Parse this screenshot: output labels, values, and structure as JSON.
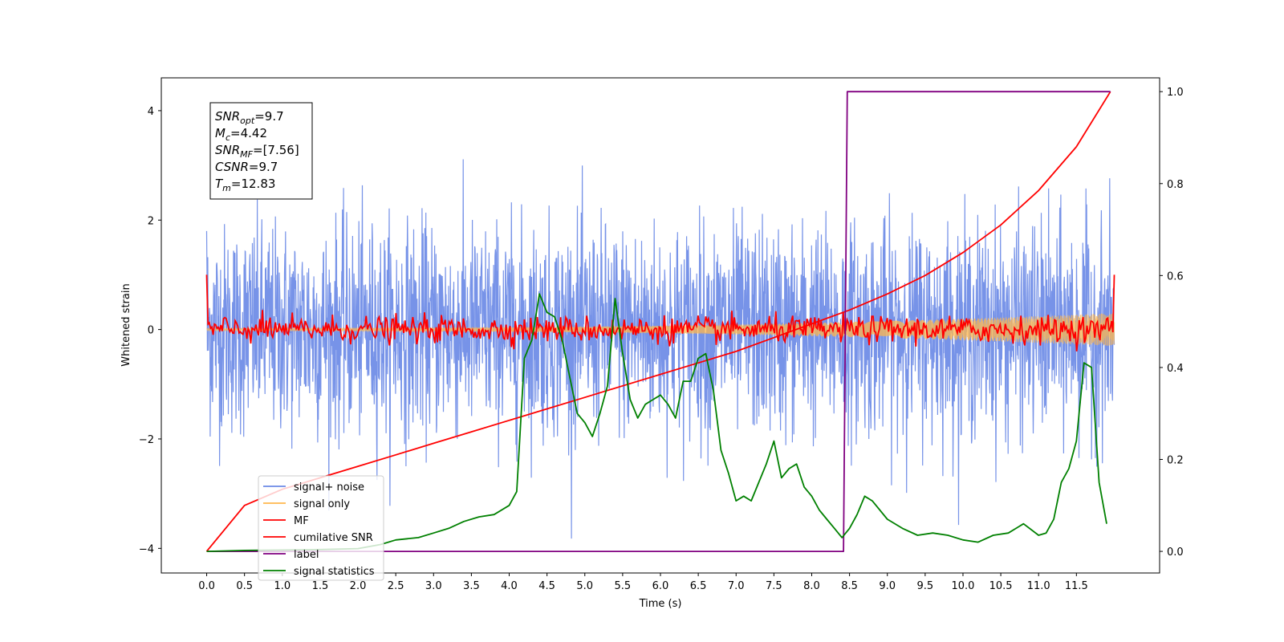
{
  "chart_data": {
    "type": "line",
    "xlabel": "Time (s)",
    "ylabel_left": "Whitened strain",
    "ylabel_right": "",
    "xlim": [
      -0.6,
      12.6
    ],
    "ylim_left": [
      -4.45,
      4.6
    ],
    "ylim_right": [
      -0.047,
      1.03
    ],
    "x_ticks": [
      "0.0",
      "0.5",
      "1.0",
      "1.5",
      "2.0",
      "2.5",
      "3.0",
      "3.5",
      "4.0",
      "4.5",
      "5.0",
      "5.5",
      "6.0",
      "6.5",
      "7.0",
      "7.5",
      "8.0",
      "8.5",
      "9.0",
      "9.5",
      "10.0",
      "10.5",
      "11.0",
      "11.5"
    ],
    "y_ticks_left": [
      "−4",
      "−2",
      "0",
      "2",
      "4"
    ],
    "y_ticks_right": [
      "0.0",
      "0.2",
      "0.4",
      "0.6",
      "0.8",
      "1.0"
    ],
    "legend_position": "lower-left",
    "grid": false,
    "info_box": [
      {
        "base": "SNR",
        "sub": "opt",
        "value": "=9.7"
      },
      {
        "base": "M",
        "sub": "c",
        "value": "=4.42"
      },
      {
        "base": "SNR",
        "sub": "MF",
        "value": "=[7.56]"
      },
      {
        "base": "CSNR",
        "sub": "",
        "value": "=9.7"
      },
      {
        "base": "T",
        "sub": "m",
        "value": "=12.83"
      }
    ],
    "series": [
      {
        "name": "signal+ noise",
        "color": "#6b8ae6",
        "axis": "left",
        "style": "noise",
        "std": 0.95,
        "x_range": [
          0,
          12.0
        ]
      },
      {
        "name": "signal only",
        "color": "#ffb74d",
        "axis": "left",
        "style": "chirp",
        "envelope_start": 0.02,
        "envelope_end": 0.3,
        "x_range": [
          0,
          12.0
        ]
      },
      {
        "name": "MF",
        "color": "#ff0000",
        "axis": "left",
        "style": "matched-filter",
        "start_value": 1.0,
        "end_value": 1.0,
        "std": 0.12,
        "x_range": [
          0,
          12.0
        ]
      },
      {
        "name": "cumilative SNR",
        "color": "#ff0000",
        "axis": "right",
        "x": [
          0,
          0.5,
          1,
          1.5,
          2,
          2.5,
          3,
          3.5,
          4,
          4.5,
          5,
          5.5,
          6,
          6.5,
          7,
          7.5,
          8,
          8.5,
          9,
          9.5,
          10,
          10.5,
          11,
          11.5,
          11.95
        ],
        "y": [
          0.0,
          0.1,
          0.135,
          0.16,
          0.185,
          0.21,
          0.235,
          0.26,
          0.285,
          0.31,
          0.335,
          0.36,
          0.385,
          0.41,
          0.435,
          0.465,
          0.495,
          0.525,
          0.56,
          0.6,
          0.65,
          0.71,
          0.785,
          0.88,
          1.0
        ]
      },
      {
        "name": "label",
        "color": "#800080",
        "axis": "right",
        "x": [
          0,
          8.42,
          8.47,
          11.95
        ],
        "y": [
          0,
          0,
          1,
          1
        ]
      },
      {
        "name": "signal statistics",
        "color": "#008000",
        "axis": "right",
        "x": [
          0,
          0.5,
          1.0,
          1.5,
          2.0,
          2.3,
          2.5,
          2.8,
          3.0,
          3.2,
          3.4,
          3.6,
          3.8,
          4.0,
          4.1,
          4.2,
          4.3,
          4.4,
          4.5,
          4.6,
          4.7,
          4.8,
          4.9,
          5.0,
          5.1,
          5.2,
          5.3,
          5.4,
          5.5,
          5.6,
          5.7,
          5.8,
          5.9,
          6.0,
          6.1,
          6.2,
          6.3,
          6.4,
          6.5,
          6.6,
          6.7,
          6.8,
          6.9,
          7.0,
          7.1,
          7.2,
          7.3,
          7.4,
          7.5,
          7.6,
          7.7,
          7.8,
          7.9,
          8.0,
          8.1,
          8.2,
          8.3,
          8.4,
          8.5,
          8.6,
          8.7,
          8.8,
          8.9,
          9.0,
          9.2,
          9.4,
          9.6,
          9.8,
          10.0,
          10.2,
          10.4,
          10.6,
          10.8,
          11.0,
          11.1,
          11.2,
          11.3,
          11.4,
          11.5,
          11.6,
          11.7,
          11.8,
          11.9
        ],
        "y": [
          0.0,
          0.002,
          0.003,
          0.004,
          0.006,
          0.015,
          0.025,
          0.03,
          0.04,
          0.05,
          0.065,
          0.075,
          0.08,
          0.1,
          0.13,
          0.42,
          0.46,
          0.56,
          0.52,
          0.51,
          0.46,
          0.38,
          0.3,
          0.28,
          0.25,
          0.3,
          0.36,
          0.55,
          0.43,
          0.33,
          0.29,
          0.32,
          0.33,
          0.34,
          0.32,
          0.29,
          0.37,
          0.37,
          0.42,
          0.43,
          0.35,
          0.22,
          0.17,
          0.11,
          0.12,
          0.11,
          0.15,
          0.19,
          0.24,
          0.16,
          0.18,
          0.19,
          0.14,
          0.12,
          0.09,
          0.07,
          0.05,
          0.03,
          0.05,
          0.08,
          0.12,
          0.11,
          0.09,
          0.07,
          0.05,
          0.035,
          0.04,
          0.035,
          0.025,
          0.02,
          0.035,
          0.04,
          0.06,
          0.035,
          0.04,
          0.07,
          0.15,
          0.18,
          0.24,
          0.41,
          0.4,
          0.15,
          0.06
        ]
      }
    ]
  }
}
